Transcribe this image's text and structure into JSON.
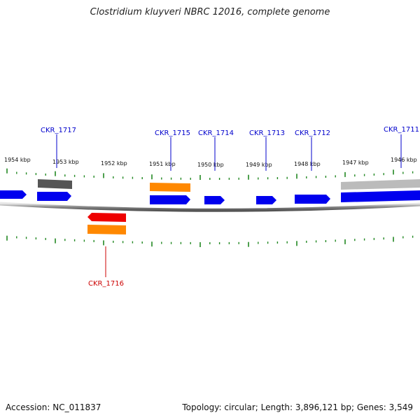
{
  "title": "Clostridium kluyveri NBRC 12016, complete genome",
  "footer": {
    "accession": "Accession: NC_011837",
    "summary": "Topology: circular; Length: 3,896,121 bp; Genes: 3,549"
  },
  "map": {
    "colors": {
      "forward_cds": "#0000ee",
      "rna": "#ff8800",
      "reverse_highlight": "#ee0000",
      "pseudo_dark": "#555555",
      "pseudo_light": "#bbbbbb",
      "backbone": "#888888",
      "ticks": "#228822",
      "label_forward": "#0000cc",
      "label_reverse": "#cc0000"
    },
    "axis_labels": [
      "1954 kbp",
      "1953 kbp",
      "1952 kbp",
      "1951 kbp",
      "1950 kbp",
      "1949 kbp",
      "1948 kbp",
      "1947 kbp",
      "1946 kbp"
    ],
    "gene_labels": [
      {
        "text": "CKR_1717",
        "strand": "forward"
      },
      {
        "text": "CKR_1715",
        "strand": "forward"
      },
      {
        "text": "CKR_1714",
        "strand": "forward"
      },
      {
        "text": "CKR_1713",
        "strand": "forward"
      },
      {
        "text": "CKR_1712",
        "strand": "forward"
      },
      {
        "text": "CKR_1711",
        "strand": "forward"
      },
      {
        "text": "CKR_1716",
        "strand": "reverse"
      }
    ]
  }
}
